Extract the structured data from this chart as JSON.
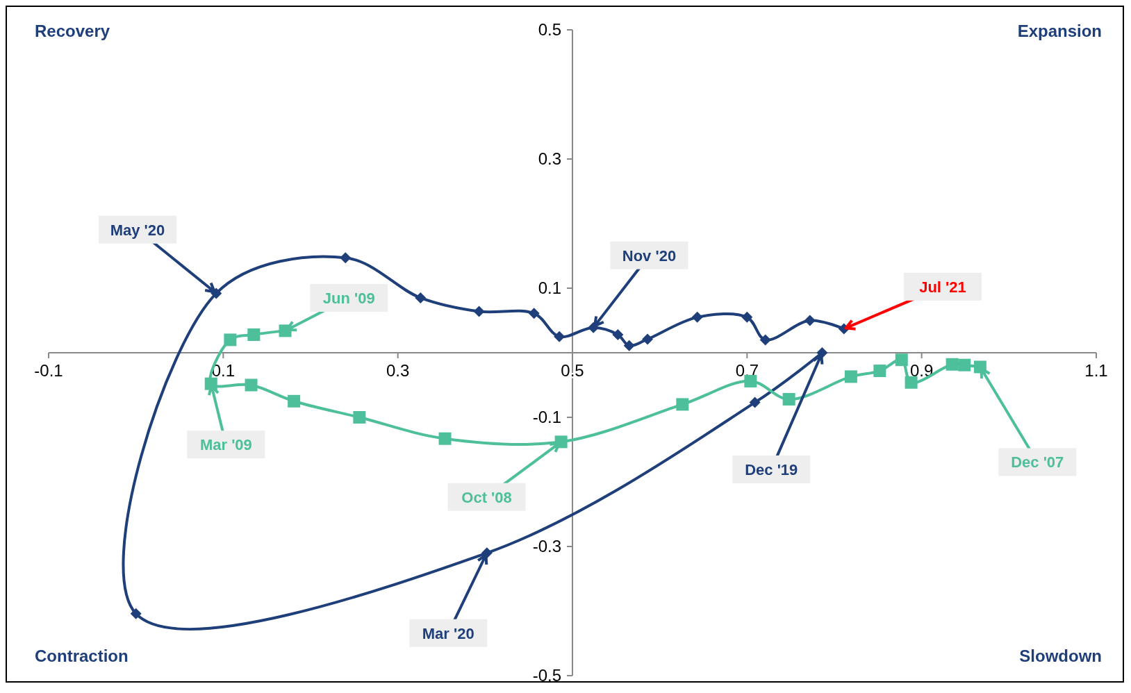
{
  "chart_data": {
    "type": "line",
    "xlim": [
      -0.1,
      1.1
    ],
    "ylim": [
      -0.5,
      0.5
    ],
    "xticks": [
      -0.1,
      0.1,
      0.3,
      0.5,
      0.7,
      0.9,
      1.1
    ],
    "yticks": [
      -0.5,
      -0.3,
      -0.1,
      0.1,
      0.3,
      0.5
    ],
    "grid": false,
    "line_style": "solid",
    "series": [
      {
        "color": "#1f3f7a",
        "marker": "diamond",
        "x": [
          0.786,
          0.709,
          0.402,
          0.0,
          0.092,
          0.24,
          0.326,
          0.393,
          0.456,
          0.485,
          0.524,
          0.552,
          0.565,
          0.586,
          0.643,
          0.7,
          0.721,
          0.772,
          0.811
        ],
        "values": [
          0.0,
          -0.077,
          -0.31,
          -0.404,
          0.092,
          0.147,
          0.085,
          0.064,
          0.061,
          0.025,
          0.039,
          0.028,
          0.011,
          0.021,
          0.055,
          0.055,
          0.02,
          0.05,
          0.037
        ]
      },
      {
        "color": "#4dbf9a",
        "marker": "square",
        "x": [
          0.967,
          0.949,
          0.935,
          0.888,
          0.877,
          0.852,
          0.819,
          0.748,
          0.704,
          0.626,
          0.487,
          0.354,
          0.256,
          0.181,
          0.132,
          0.086,
          0.108,
          0.135,
          0.171
        ],
        "values": [
          -0.022,
          -0.019,
          -0.018,
          -0.046,
          -0.011,
          -0.028,
          -0.037,
          -0.072,
          -0.044,
          -0.08,
          -0.138,
          -0.133,
          -0.1,
          -0.075,
          -0.05,
          -0.048,
          0.02,
          0.028,
          0.034
        ]
      }
    ],
    "annotations": [
      "Recovery",
      "Expansion",
      "Contraction",
      "Slowdown",
      {
        "text": "May '20",
        "x": 0.092,
        "y": 0.092
      },
      {
        "text": "Jun '09",
        "x": 0.171,
        "y": 0.034
      },
      {
        "text": "Mar '09",
        "x": 0.086,
        "y": -0.048
      },
      {
        "text": "Nov '20",
        "x": 0.524,
        "y": 0.039
      },
      {
        "text": "Jul '21",
        "x": 0.811,
        "y": 0.037
      },
      {
        "text": "Oct '08",
        "x": 0.487,
        "y": -0.138
      },
      {
        "text": "Dec '19",
        "x": 0.786,
        "y": 0.0
      },
      {
        "text": "Mar '20",
        "x": 0.402,
        "y": -0.31
      },
      {
        "text": "Dec '07",
        "x": 0.967,
        "y": -0.022
      }
    ]
  }
}
